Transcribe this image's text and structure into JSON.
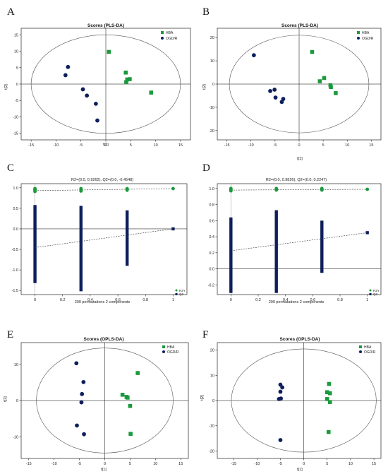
{
  "colors": {
    "hba": "#1a9a3c",
    "ogd": "#0e1f5b",
    "axis": "#000000",
    "ellipse": "#555555"
  },
  "chart_data": [
    {
      "panel": "A",
      "type": "scatter",
      "title": "Scores (PLS-DA)",
      "xlabel": "t[1]",
      "ylabel": "t[2]",
      "xlim": [
        -17,
        17
      ],
      "ylim": [
        -17,
        17
      ],
      "xticks": [
        -15,
        -10,
        -5,
        0,
        5,
        10,
        15
      ],
      "yticks": [
        -15,
        -10,
        -5,
        0,
        5,
        10,
        15
      ],
      "ellipse": {
        "rx": 15,
        "ry": 15
      },
      "legend": [
        "HBA",
        "OGD/R"
      ],
      "legend_position": "top-right",
      "series": [
        {
          "name": "HBA",
          "marker": "square",
          "points": [
            [
              0.6,
              9.8
            ],
            [
              4.0,
              3.5
            ],
            [
              4.3,
              1.4
            ],
            [
              4.8,
              1.5
            ],
            [
              4.1,
              0.6
            ],
            [
              9.1,
              -2.6
            ]
          ]
        },
        {
          "name": "OGD/R",
          "marker": "circle",
          "points": [
            [
              -7.6,
              5.2
            ],
            [
              -8.1,
              2.7
            ],
            [
              -4.6,
              -1.6
            ],
            [
              -3.8,
              -3.5
            ],
            [
              -2.0,
              -6.0
            ],
            [
              -1.7,
              -11.1
            ]
          ]
        }
      ]
    },
    {
      "panel": "B",
      "type": "scatter",
      "title": "Scores (PLS-DA)",
      "xlabel": "t[1]",
      "ylabel": "t[2]",
      "xlim": [
        -17,
        17
      ],
      "ylim": [
        -24,
        24
      ],
      "xticks": [
        -15,
        -10,
        -5,
        0,
        5,
        10,
        15
      ],
      "yticks": [
        -20,
        -10,
        0,
        10,
        20
      ],
      "ellipse": {
        "rx": 14.5,
        "ry": 21
      },
      "legend": [
        "HBA",
        "OGD/R"
      ],
      "legend_position": "top-right",
      "series": [
        {
          "name": "HBA",
          "marker": "square",
          "points": [
            [
              2.7,
              13.8
            ],
            [
              5.2,
              2.6
            ],
            [
              4.3,
              1.2
            ],
            [
              6.5,
              -0.5
            ],
            [
              6.6,
              -1.3
            ],
            [
              7.6,
              -3.9
            ]
          ]
        },
        {
          "name": "OGD/R",
          "marker": "circle",
          "points": [
            [
              -9.4,
              12.4
            ],
            [
              -6.0,
              -3.0
            ],
            [
              -5.1,
              -2.4
            ],
            [
              -4.9,
              -5.8
            ],
            [
              -3.3,
              -6.4
            ],
            [
              -3.6,
              -7.7
            ]
          ]
        }
      ]
    },
    {
      "panel": "C",
      "type": "scatter",
      "title": "R2=(0.0, 0.9262), Q2=(0.0, -0.4548)",
      "xlabel": "200 permutations 2 components",
      "ylabel": "",
      "xlim": [
        -0.1,
        1.1
      ],
      "ylim": [
        -1.6,
        1.1
      ],
      "xticks": [
        0,
        0.2,
        0.4,
        0.6,
        0.8,
        1
      ],
      "yticks": [
        -1.5,
        -1.0,
        -0.5,
        0.0,
        0.5,
        1.0
      ],
      "legend": [
        "R2Y",
        "Q2"
      ],
      "legend_position": "bottom-right",
      "r2_points": [
        [
          0,
          0.98
        ],
        [
          0,
          0.96
        ],
        [
          0,
          0.95
        ],
        [
          0,
          0.93
        ],
        [
          0,
          0.91
        ],
        [
          0.333,
          0.98
        ],
        [
          0.333,
          0.96
        ],
        [
          0.333,
          0.94
        ],
        [
          0.333,
          0.92
        ],
        [
          0.667,
          0.98
        ],
        [
          0.667,
          0.97
        ],
        [
          0.667,
          0.96
        ],
        [
          0.667,
          0.94
        ],
        [
          1,
          0.98
        ]
      ],
      "q2_columns": [
        {
          "x": 0,
          "ymin": -1.32,
          "ymax": 0.58
        },
        {
          "x": 0.333,
          "ymin": -1.52,
          "ymax": 0.56
        },
        {
          "x": 0.667,
          "ymin": -0.9,
          "ymax": 0.45
        }
      ],
      "q2_points": [
        [
          1,
          0.0
        ]
      ],
      "r2_line": [
        [
          0,
          0.93
        ],
        [
          1,
          0.98
        ]
      ],
      "q2_line": [
        [
          0,
          -0.4548
        ],
        [
          1,
          0.0
        ]
      ]
    },
    {
      "panel": "D",
      "type": "scatter",
      "title": "R2=(0.0, 0.9826), Q2=(0.0, 0.2247)",
      "xlabel": "200 permutations 2 components",
      "ylabel": "",
      "xlim": [
        -0.1,
        1.1
      ],
      "ylim": [
        -0.32,
        1.06
      ],
      "xticks": [
        0,
        0.2,
        0.4,
        0.6,
        0.8,
        1
      ],
      "yticks": [
        -0.2,
        0.0,
        0.2,
        0.4,
        0.6,
        0.8,
        1.0
      ],
      "legend": [
        "R2Y",
        "Q2"
      ],
      "legend_position": "bottom-right",
      "r2_points": [
        [
          0,
          1.0
        ],
        [
          0,
          0.99
        ],
        [
          0,
          0.98
        ],
        [
          0,
          0.97
        ],
        [
          0.333,
          1.0
        ],
        [
          0.333,
          0.99
        ],
        [
          0.333,
          0.98
        ],
        [
          0.667,
          1.0
        ],
        [
          0.667,
          0.99
        ],
        [
          0.667,
          0.98
        ],
        [
          1,
          0.99
        ]
      ],
      "q2_columns": [
        {
          "x": 0,
          "ymin": -0.3,
          "ymax": 0.64
        },
        {
          "x": 0.333,
          "ymin": -0.3,
          "ymax": 0.73
        },
        {
          "x": 0.667,
          "ymin": -0.05,
          "ymax": 0.6
        }
      ],
      "q2_points": [
        [
          1,
          0.45
        ]
      ],
      "r2_line": [
        [
          0,
          0.98
        ],
        [
          1,
          0.99
        ]
      ],
      "q2_line": [
        [
          0,
          0.2247
        ],
        [
          1,
          0.45
        ]
      ]
    },
    {
      "panel": "E",
      "type": "scatter",
      "title": "Scores (OPLS-DA)",
      "xlabel": "t[1]",
      "ylabel": "t[2]",
      "xlim": [
        -16.5,
        16.5
      ],
      "ylim": [
        -16,
        16
      ],
      "xticks": [
        -15,
        -10,
        -5,
        0,
        5,
        10,
        15
      ],
      "yticks": [
        -10,
        0,
        10
      ],
      "ellipse": {
        "rx": 13.5,
        "ry": 14.5
      },
      "legend": [
        "HBA",
        "OGD/R"
      ],
      "legend_position": "top-right",
      "series": [
        {
          "name": "HBA",
          "marker": "square",
          "points": [
            [
              6.5,
              7.6
            ],
            [
              3.5,
              1.6
            ],
            [
              4.3,
              1.0
            ],
            [
              4.5,
              0.8
            ],
            [
              5.0,
              -1.5
            ],
            [
              5.1,
              -9.2
            ]
          ]
        },
        {
          "name": "OGD/R",
          "marker": "circle",
          "points": [
            [
              -5.6,
              10.3
            ],
            [
              -4.2,
              5.1
            ],
            [
              -4.5,
              1.8
            ],
            [
              -4.6,
              -0.5
            ],
            [
              -5.5,
              -6.9
            ],
            [
              -4.1,
              -9.3
            ]
          ]
        }
      ]
    },
    {
      "panel": "F",
      "type": "scatter",
      "title": "Scores (OPLS-DA)",
      "xlabel": "t[1]",
      "ylabel": "t[2]",
      "xlim": [
        -18.5,
        16.5
      ],
      "ylim": [
        -23,
        23
      ],
      "xticks": [
        -15,
        -10,
        -5,
        0,
        5,
        10,
        15
      ],
      "yticks": [
        -20,
        -10,
        0,
        10,
        20
      ],
      "ellipse": {
        "rx": 15.5,
        "ry": 20.5
      },
      "legend": [
        "HBA",
        "OGD/R"
      ],
      "legend_position": "top-right",
      "series": [
        {
          "name": "HBA",
          "marker": "square",
          "points": [
            [
              5.4,
              6.6
            ],
            [
              5.0,
              3.3
            ],
            [
              5.6,
              2.9
            ],
            [
              5.0,
              0.6
            ],
            [
              5.6,
              -0.6
            ],
            [
              5.3,
              -12.5
            ]
          ]
        },
        {
          "name": "OGD/R",
          "marker": "circle",
          "points": [
            [
              -5.0,
              6.3
            ],
            [
              -4.6,
              5.2
            ],
            [
              -5.0,
              3.5
            ],
            [
              -4.9,
              0.8
            ],
            [
              -5.3,
              0.6
            ],
            [
              -5.0,
              -15.7
            ]
          ]
        }
      ]
    }
  ]
}
